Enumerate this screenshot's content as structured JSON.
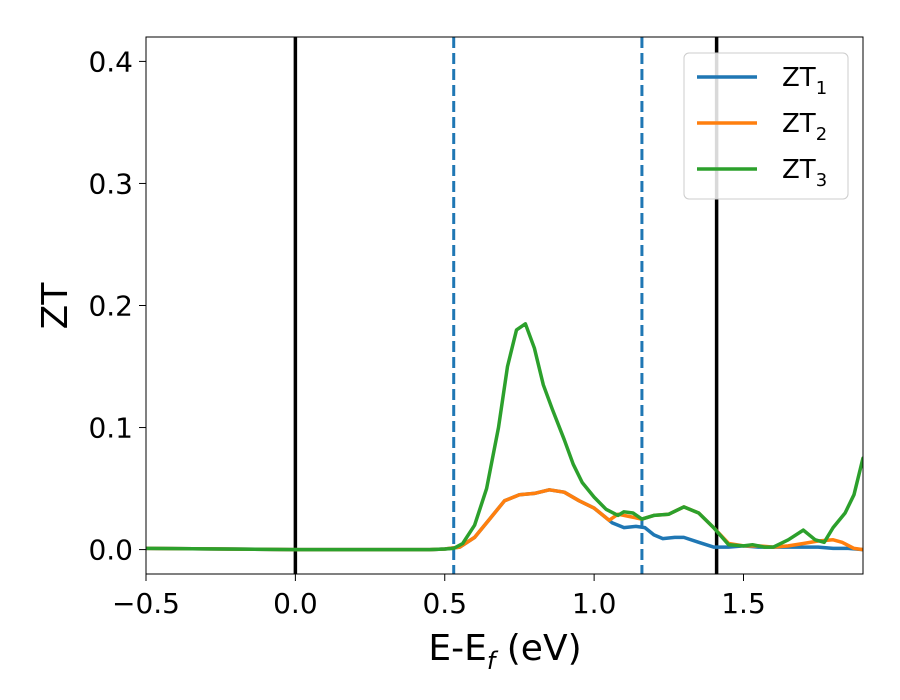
{
  "chart_data": {
    "type": "line",
    "xlabel": "E-E",
    "xlabel_sub": "f",
    "xlabel_unit": " (eV)",
    "ylabel": "ZT",
    "xlim": [
      -0.5,
      1.9
    ],
    "ylim": [
      -0.02,
      0.42
    ],
    "x_ticks": [
      -0.5,
      0.0,
      0.5,
      1.0,
      1.5
    ],
    "x_tick_labels": [
      "−0.5",
      "0.0",
      "0.5",
      "1.0",
      "1.5"
    ],
    "y_ticks": [
      0.0,
      0.1,
      0.2,
      0.3,
      0.4
    ],
    "y_tick_labels": [
      "0.0",
      "0.1",
      "0.2",
      "0.3",
      "0.4"
    ],
    "grid": false,
    "legend_position": "top-right",
    "colors": {
      "ZT1": "#1f77b4",
      "ZT2": "#ff7f0e",
      "ZT3": "#2ca02c",
      "vline_solid": "#000000",
      "vline_dashed": "#1f77b4"
    },
    "vlines": [
      {
        "x": 0.0,
        "style": "solid",
        "color": "#000000"
      },
      {
        "x": 1.41,
        "style": "solid",
        "color": "#000000"
      },
      {
        "x": 0.53,
        "style": "dashed",
        "color": "#1f77b4"
      },
      {
        "x": 1.16,
        "style": "dashed",
        "color": "#1f77b4"
      }
    ],
    "series": [
      {
        "name": "ZT",
        "name_sub": "1",
        "color": "#1f77b4",
        "points": [
          [
            -0.5,
            0.001
          ],
          [
            0.0,
            0.0
          ],
          [
            0.45,
            0.0
          ],
          [
            0.5,
            0.0005
          ],
          [
            0.55,
            0.002
          ],
          [
            0.6,
            0.01
          ],
          [
            0.65,
            0.025
          ],
          [
            0.7,
            0.04
          ],
          [
            0.75,
            0.045
          ],
          [
            0.8,
            0.046
          ],
          [
            0.85,
            0.049
          ],
          [
            0.9,
            0.047
          ],
          [
            0.95,
            0.04
          ],
          [
            1.0,
            0.034
          ],
          [
            1.03,
            0.028
          ],
          [
            1.06,
            0.022
          ],
          [
            1.1,
            0.018
          ],
          [
            1.14,
            0.019
          ],
          [
            1.17,
            0.018
          ],
          [
            1.2,
            0.012
          ],
          [
            1.23,
            0.009
          ],
          [
            1.27,
            0.01
          ],
          [
            1.3,
            0.01
          ],
          [
            1.35,
            0.006
          ],
          [
            1.4,
            0.002
          ],
          [
            1.45,
            0.002
          ],
          [
            1.5,
            0.003
          ],
          [
            1.55,
            0.002
          ],
          [
            1.6,
            0.002
          ],
          [
            1.65,
            0.002
          ],
          [
            1.7,
            0.002
          ],
          [
            1.75,
            0.002
          ],
          [
            1.8,
            0.001
          ],
          [
            1.85,
            0.001
          ],
          [
            1.9,
            0.0
          ]
        ]
      },
      {
        "name": "ZT",
        "name_sub": "2",
        "color": "#ff7f0e",
        "points": [
          [
            -0.5,
            0.001
          ],
          [
            0.0,
            0.0
          ],
          [
            0.45,
            0.0
          ],
          [
            0.5,
            0.0005
          ],
          [
            0.55,
            0.002
          ],
          [
            0.6,
            0.01
          ],
          [
            0.65,
            0.025
          ],
          [
            0.7,
            0.04
          ],
          [
            0.75,
            0.045
          ],
          [
            0.8,
            0.046
          ],
          [
            0.85,
            0.049
          ],
          [
            0.9,
            0.047
          ],
          [
            0.95,
            0.04
          ],
          [
            1.0,
            0.034
          ],
          [
            1.03,
            0.028
          ],
          [
            1.05,
            0.024
          ],
          [
            1.08,
            0.029
          ],
          [
            1.12,
            0.027
          ],
          [
            1.16,
            0.025
          ],
          [
            1.2,
            0.028
          ],
          [
            1.25,
            0.029
          ],
          [
            1.3,
            0.035
          ],
          [
            1.35,
            0.03
          ],
          [
            1.4,
            0.018
          ],
          [
            1.45,
            0.005
          ],
          [
            1.5,
            0.003
          ],
          [
            1.55,
            0.003
          ],
          [
            1.6,
            0.002
          ],
          [
            1.65,
            0.003
          ],
          [
            1.7,
            0.005
          ],
          [
            1.75,
            0.007
          ],
          [
            1.8,
            0.008
          ],
          [
            1.83,
            0.006
          ],
          [
            1.87,
            0.001
          ],
          [
            1.9,
            0.0
          ]
        ]
      },
      {
        "name": "ZT",
        "name_sub": "3",
        "color": "#2ca02c",
        "points": [
          [
            -0.5,
            0.001
          ],
          [
            0.0,
            0.0
          ],
          [
            0.45,
            0.0
          ],
          [
            0.5,
            0.0005
          ],
          [
            0.53,
            0.001
          ],
          [
            0.56,
            0.005
          ],
          [
            0.6,
            0.02
          ],
          [
            0.64,
            0.05
          ],
          [
            0.68,
            0.1
          ],
          [
            0.71,
            0.15
          ],
          [
            0.74,
            0.18
          ],
          [
            0.77,
            0.185
          ],
          [
            0.8,
            0.165
          ],
          [
            0.83,
            0.135
          ],
          [
            0.86,
            0.115
          ],
          [
            0.9,
            0.09
          ],
          [
            0.93,
            0.07
          ],
          [
            0.96,
            0.055
          ],
          [
            1.0,
            0.043
          ],
          [
            1.04,
            0.033
          ],
          [
            1.08,
            0.028
          ],
          [
            1.1,
            0.031
          ],
          [
            1.13,
            0.03
          ],
          [
            1.16,
            0.025
          ],
          [
            1.2,
            0.028
          ],
          [
            1.25,
            0.029
          ],
          [
            1.3,
            0.035
          ],
          [
            1.35,
            0.03
          ],
          [
            1.4,
            0.018
          ],
          [
            1.45,
            0.004
          ],
          [
            1.5,
            0.003
          ],
          [
            1.53,
            0.004
          ],
          [
            1.57,
            0.002
          ],
          [
            1.6,
            0.002
          ],
          [
            1.65,
            0.008
          ],
          [
            1.7,
            0.016
          ],
          [
            1.74,
            0.008
          ],
          [
            1.77,
            0.006
          ],
          [
            1.8,
            0.018
          ],
          [
            1.84,
            0.03
          ],
          [
            1.87,
            0.045
          ],
          [
            1.9,
            0.075
          ]
        ]
      }
    ]
  }
}
